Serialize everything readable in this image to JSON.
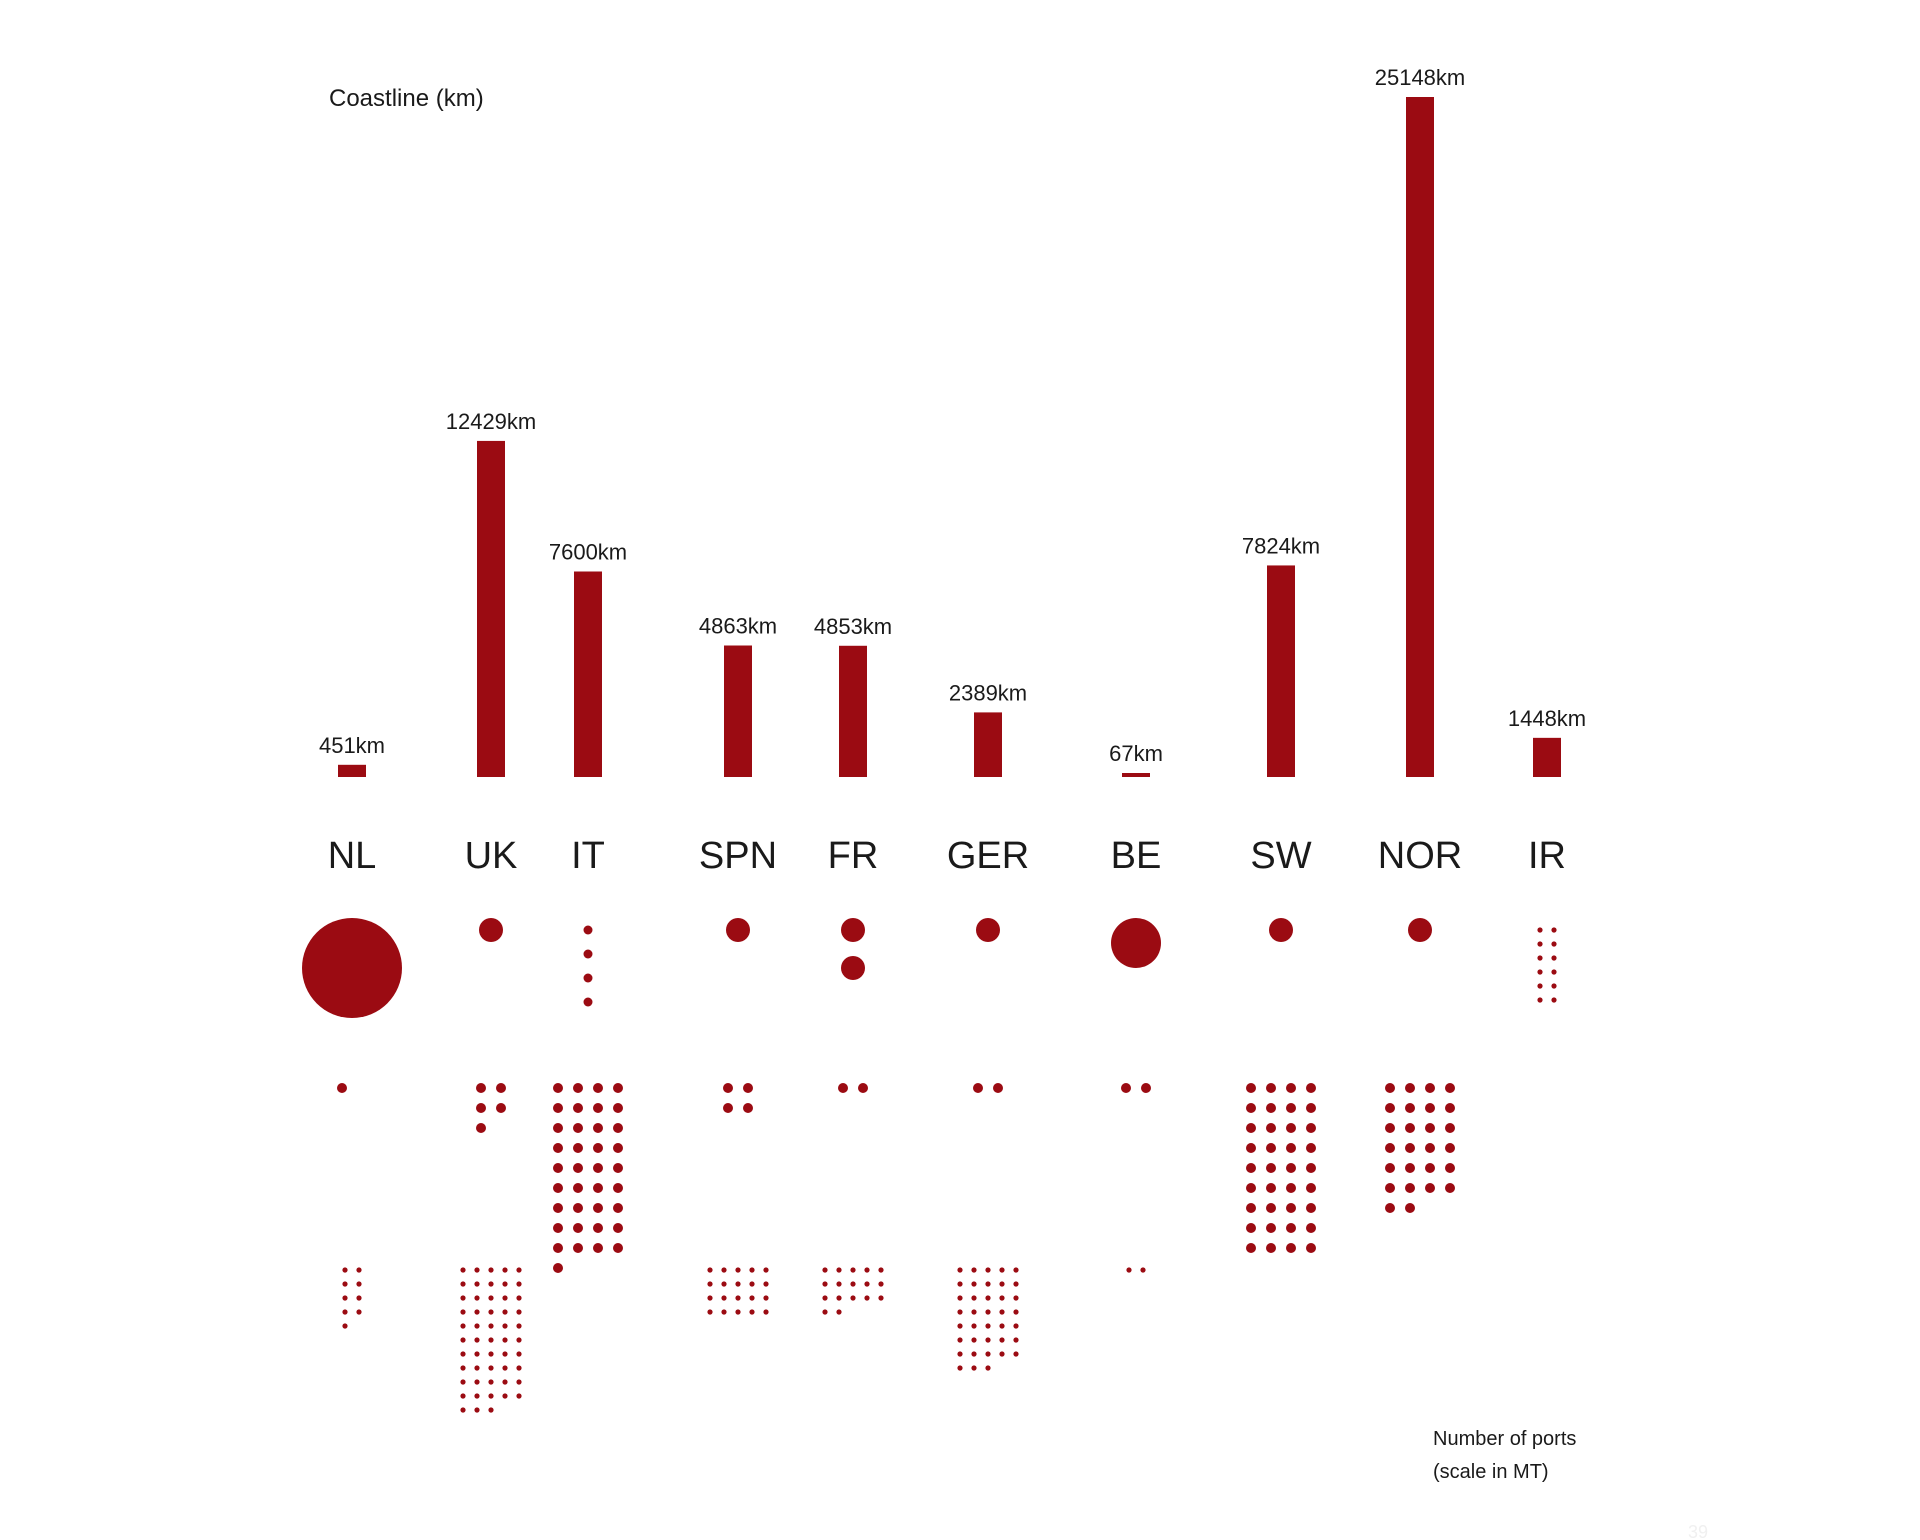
{
  "chart_data": {
    "type": "bar",
    "title": "Coastline (km)",
    "categories": [
      "NL",
      "UK",
      "IT",
      "SPN",
      "FR",
      "GER",
      "BE",
      "SW",
      "NOR",
      "IR"
    ],
    "values": [
      451,
      12429,
      7600,
      4863,
      4853,
      2389,
      67,
      7824,
      25148,
      1448
    ],
    "value_labels": [
      "451km",
      "12429km",
      "7600km",
      "4863km",
      "4853km",
      "2389km",
      "67km",
      "7824km",
      "25148km",
      "1448km"
    ],
    "ylim": [
      0,
      25148
    ],
    "grid": false,
    "bar_color": "#9b0b12",
    "ports_legend": [
      "Number of ports",
      "(scale in MT)"
    ],
    "ports_dot_counts": {
      "description_rows": [
        "large",
        "medium",
        "small"
      ],
      "NL": [
        1,
        1,
        9
      ],
      "UK": [
        1,
        5,
        53
      ],
      "IT": [
        4,
        37,
        0
      ],
      "SPN": [
        1,
        4,
        20
      ],
      "FR": [
        2,
        2,
        17
      ],
      "GER": [
        1,
        2,
        38
      ],
      "BE": [
        1,
        2,
        2
      ],
      "SW": [
        1,
        36,
        0
      ],
      "NOR": [
        1,
        26,
        0
      ],
      "IR": [
        12,
        0,
        0
      ]
    },
    "page_number": "39"
  }
}
